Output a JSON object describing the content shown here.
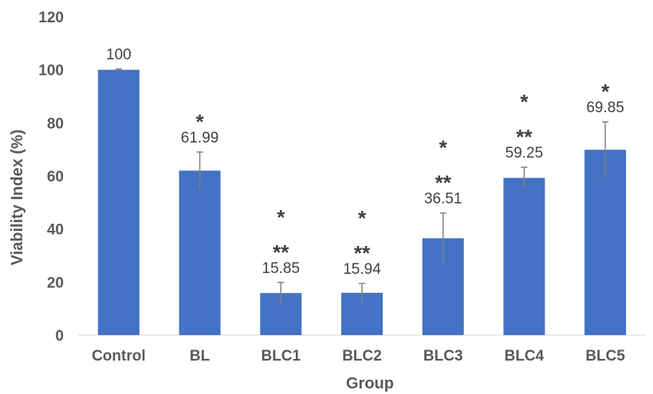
{
  "chart_data": {
    "type": "bar",
    "title": "",
    "xlabel": "Group",
    "ylabel": "Viability Index (%)",
    "ylim": [
      0,
      120
    ],
    "yticks": [
      0,
      20,
      40,
      60,
      80,
      100,
      120
    ],
    "grid": false,
    "legend": "none",
    "bar_color": "#4472c4",
    "categories": [
      "Control",
      "BL",
      "BLC1",
      "BLC2",
      "BLC3",
      "BLC4",
      "BLC5"
    ],
    "values": [
      100,
      61.99,
      15.85,
      15.94,
      36.51,
      59.25,
      69.85
    ],
    "data_labels": [
      "100",
      "61.99",
      "15.85",
      "15.94",
      "36.51",
      "59.25",
      "69.85"
    ],
    "error_bars": [
      0.3,
      7,
      4,
      3.5,
      9.5,
      4,
      10.5
    ],
    "significance_single": [
      "",
      "*",
      "*",
      "*",
      "*",
      "*",
      "*"
    ],
    "significance_double": [
      "",
      "",
      "**",
      "**",
      "**",
      "**",
      ""
    ]
  }
}
